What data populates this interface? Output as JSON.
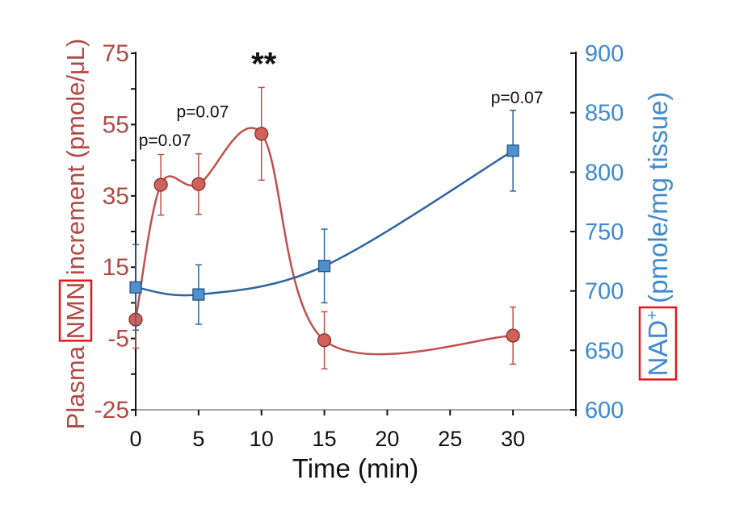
{
  "chart_data": {
    "type": "line",
    "title": "",
    "xlabel": "Time (min)",
    "ylabel_left": {
      "prefix": "Plasma ",
      "highlight": "NMN",
      "suffix": " increment (pmole/μL)"
    },
    "ylabel_right": {
      "highlight": "NAD",
      "sup": "+",
      "suffix": " (pmole/mg tissue)"
    },
    "xlim": [
      0,
      35
    ],
    "ylim_left": [
      -25,
      75
    ],
    "ylim_right": [
      600,
      900
    ],
    "x_ticks": [
      0,
      5,
      10,
      15,
      20,
      25,
      30
    ],
    "y_ticks_left": [
      75,
      55,
      35,
      15,
      -5,
      -25
    ],
    "y_ticks_right": [
      900,
      850,
      800,
      750,
      700,
      650,
      600
    ],
    "grid": false,
    "colors": {
      "nmn": "#c0504d",
      "nmn_marker": "#d0605a",
      "nad": "#2f64a0",
      "nad_marker": "#4f8fcc",
      "left_axis_text": "#b04a45",
      "right_axis_text": "#3f8ad0",
      "highlight_box": "#e8141c"
    },
    "series": [
      {
        "axis": "left",
        "marker": "circle",
        "x": [
          0,
          2,
          5,
          10,
          15,
          30
        ],
        "y": [
          0.3,
          38.1,
          38.3,
          52.4,
          -5.5,
          -4.2
        ],
        "error": [
          8,
          8.5,
          8.5,
          13,
          8,
          8
        ]
      },
      {
        "axis": "right",
        "marker": "square",
        "x": [
          0,
          5,
          15,
          30
        ],
        "y": [
          703,
          697,
          721,
          818
        ],
        "error": [
          36,
          25,
          31,
          34
        ]
      }
    ],
    "annotations": [
      {
        "text": "p=0.07",
        "x": 2,
        "y": 49
      },
      {
        "text": "p=0.07",
        "x": 5,
        "y": 57
      },
      {
        "text": "**",
        "x": 10,
        "y": 69
      },
      {
        "text": "p=0.07",
        "x": 30,
        "y": 61
      }
    ]
  }
}
